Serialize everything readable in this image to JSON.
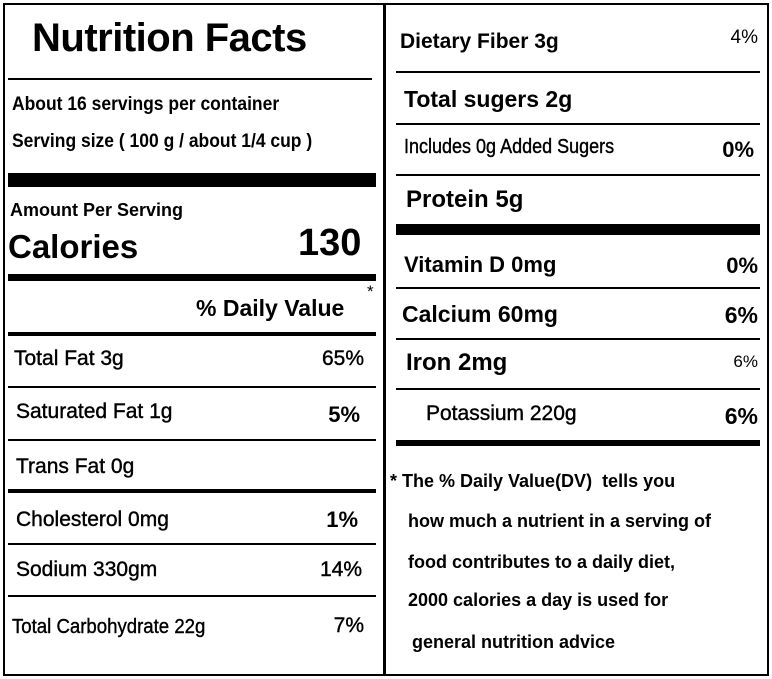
{
  "left": {
    "title": "Nutrition Facts",
    "servings_per_container": "About 16 servings per container",
    "serving_size": "Serving size ( 100 g / about 1/4 cup )",
    "amount_per_serving": "Amount Per Serving",
    "calories_label": "Calories",
    "calories_value": "130",
    "daily_value_header": "% Daily Value",
    "daily_value_star": "*",
    "rows": [
      {
        "label": "Total Fat  3g",
        "dv": "65%"
      },
      {
        "label": "Saturated Fat  1g",
        "dv": "5%"
      },
      {
        "label": "Trans Fat 0g",
        "dv": ""
      },
      {
        "label": "Cholesterol  0mg",
        "dv": "1%"
      },
      {
        "label": "Sodium  330gm",
        "dv": "14%"
      },
      {
        "label": "Total Carbohydrate 22g",
        "dv": "7%"
      }
    ]
  },
  "right": {
    "rows": [
      {
        "label": "Dietary Fiber 3g",
        "dv": "4%"
      },
      {
        "label": "Total sugers 2g",
        "dv": ""
      },
      {
        "label": "Includes 0g Added Sugers",
        "dv": "0%"
      },
      {
        "label": "Protein  5g",
        "dv": ""
      },
      {
        "label": "Vitamin D 0mg",
        "dv": "0%"
      },
      {
        "label": "Calcium  60mg",
        "dv": "6%"
      },
      {
        "label": "Iron  2mg",
        "dv": "6%"
      },
      {
        "label": "Potassium 220g",
        "dv": "6%"
      }
    ],
    "footnote": [
      "* The % Daily Value(DV)  tells you",
      "how much a nutrient in a serving of",
      "food contributes to a daily diet,",
      "2000 calories a day is used for",
      "general nutrition advice"
    ]
  }
}
